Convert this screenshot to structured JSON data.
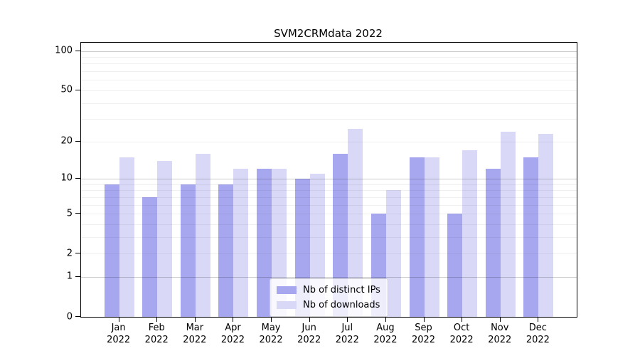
{
  "title": "SVM2CRMdata 2022",
  "chart_data": {
    "type": "bar",
    "title": "SVM2CRMdata 2022",
    "categories": [
      "Jan",
      "Feb",
      "Mar",
      "Apr",
      "May",
      "Jun",
      "Jul",
      "Aug",
      "Sep",
      "Oct",
      "Nov",
      "Dec"
    ],
    "category_year": "2022",
    "series": [
      {
        "name": "Nb of distinct IPs",
        "color": "#a7a7f0",
        "values": [
          9,
          7,
          9,
          9,
          12,
          10,
          16,
          5,
          15,
          5,
          12,
          15
        ]
      },
      {
        "name": "Nb of downloads",
        "color": "#d9d9f7",
        "values": [
          15,
          14,
          16,
          12,
          12,
          11,
          25,
          8,
          15,
          17,
          24,
          23
        ]
      }
    ],
    "yscale": "log10(value+1)",
    "yticks": [
      0,
      1,
      2,
      5,
      10,
      20,
      50,
      100
    ],
    "major_gridlines": [
      1,
      10,
      100
    ],
    "minor_gridlines": [
      2,
      3,
      4,
      5,
      6,
      7,
      8,
      9,
      20,
      30,
      40,
      50,
      60,
      70,
      80,
      90
    ],
    "ylim": [
      0,
      100
    ],
    "grid": true,
    "legend_position": "lower center"
  },
  "colors": {
    "background": "#ffffff",
    "spine": "#000000",
    "bar_ips": "#a7a7f0",
    "bar_downloads": "#d9d9f7",
    "grid_major": "rgba(0,0,0,0.20)",
    "grid_minor": "rgba(0,0,0,0.06)"
  }
}
